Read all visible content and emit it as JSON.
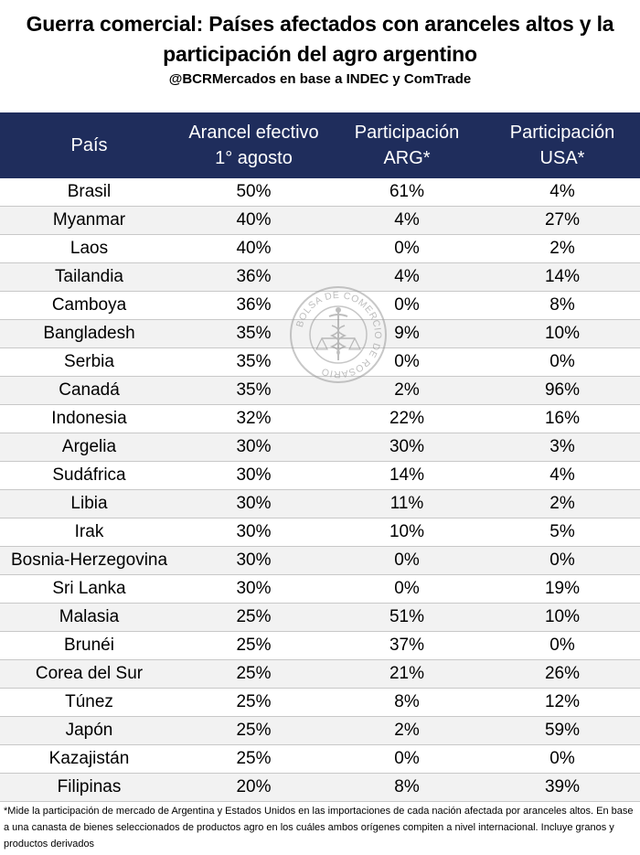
{
  "header": {
    "title": "Guerra comercial: Países afectados con aranceles altos y la participación del agro argentino",
    "subtitle": "@BCRMercados en base a INDEC y ComTrade"
  },
  "chart_data": {
    "type": "table",
    "columns": [
      [
        "País"
      ],
      [
        "Arancel efectivo",
        "1° agosto"
      ],
      [
        "Participación",
        "ARG*"
      ],
      [
        "Participación",
        "USA*"
      ]
    ],
    "rows": [
      [
        "Brasil",
        "50%",
        "61%",
        "4%"
      ],
      [
        "Myanmar",
        "40%",
        "4%",
        "27%"
      ],
      [
        "Laos",
        "40%",
        "0%",
        "2%"
      ],
      [
        "Tailandia",
        "36%",
        "4%",
        "14%"
      ],
      [
        "Camboya",
        "36%",
        "0%",
        "8%"
      ],
      [
        "Bangladesh",
        "35%",
        "9%",
        "10%"
      ],
      [
        "Serbia",
        "35%",
        "0%",
        "0%"
      ],
      [
        "Canadá",
        "35%",
        "2%",
        "96%"
      ],
      [
        "Indonesia",
        "32%",
        "22%",
        "16%"
      ],
      [
        "Argelia",
        "30%",
        "30%",
        "3%"
      ],
      [
        "Sudáfrica",
        "30%",
        "14%",
        "4%"
      ],
      [
        "Libia",
        "30%",
        "11%",
        "2%"
      ],
      [
        "Irak",
        "30%",
        "10%",
        "5%"
      ],
      [
        "Bosnia-Herzegovina",
        "30%",
        "0%",
        "0%"
      ],
      [
        "Sri Lanka",
        "30%",
        "0%",
        "19%"
      ],
      [
        "Malasia",
        "25%",
        "51%",
        "10%"
      ],
      [
        "Brunéi",
        "25%",
        "37%",
        "0%"
      ],
      [
        "Corea del Sur",
        "25%",
        "21%",
        "26%"
      ],
      [
        "Túnez",
        "25%",
        "8%",
        "12%"
      ],
      [
        "Japón",
        "25%",
        "2%",
        "59%"
      ],
      [
        "Kazajistán",
        "25%",
        "0%",
        "0%"
      ],
      [
        "Filipinas",
        "20%",
        "8%",
        "39%"
      ]
    ],
    "footnote": "*Mide la participación de mercado de Argentina y Estados Unidos en las importaciones de cada nación afectada por aranceles altos. En base a una canasta de bienes seleccionados de productos agro en los cuáles ambos orígenes compiten a nivel internacional. Incluye granos y productos derivados"
  },
  "watermark": {
    "text": "BOLSA DE COMERCIO DE ROSARIO",
    "color": "#b5b5b5"
  },
  "colors": {
    "header_bg": "#1f2d5c",
    "row_alt": "#f2f2f2"
  }
}
